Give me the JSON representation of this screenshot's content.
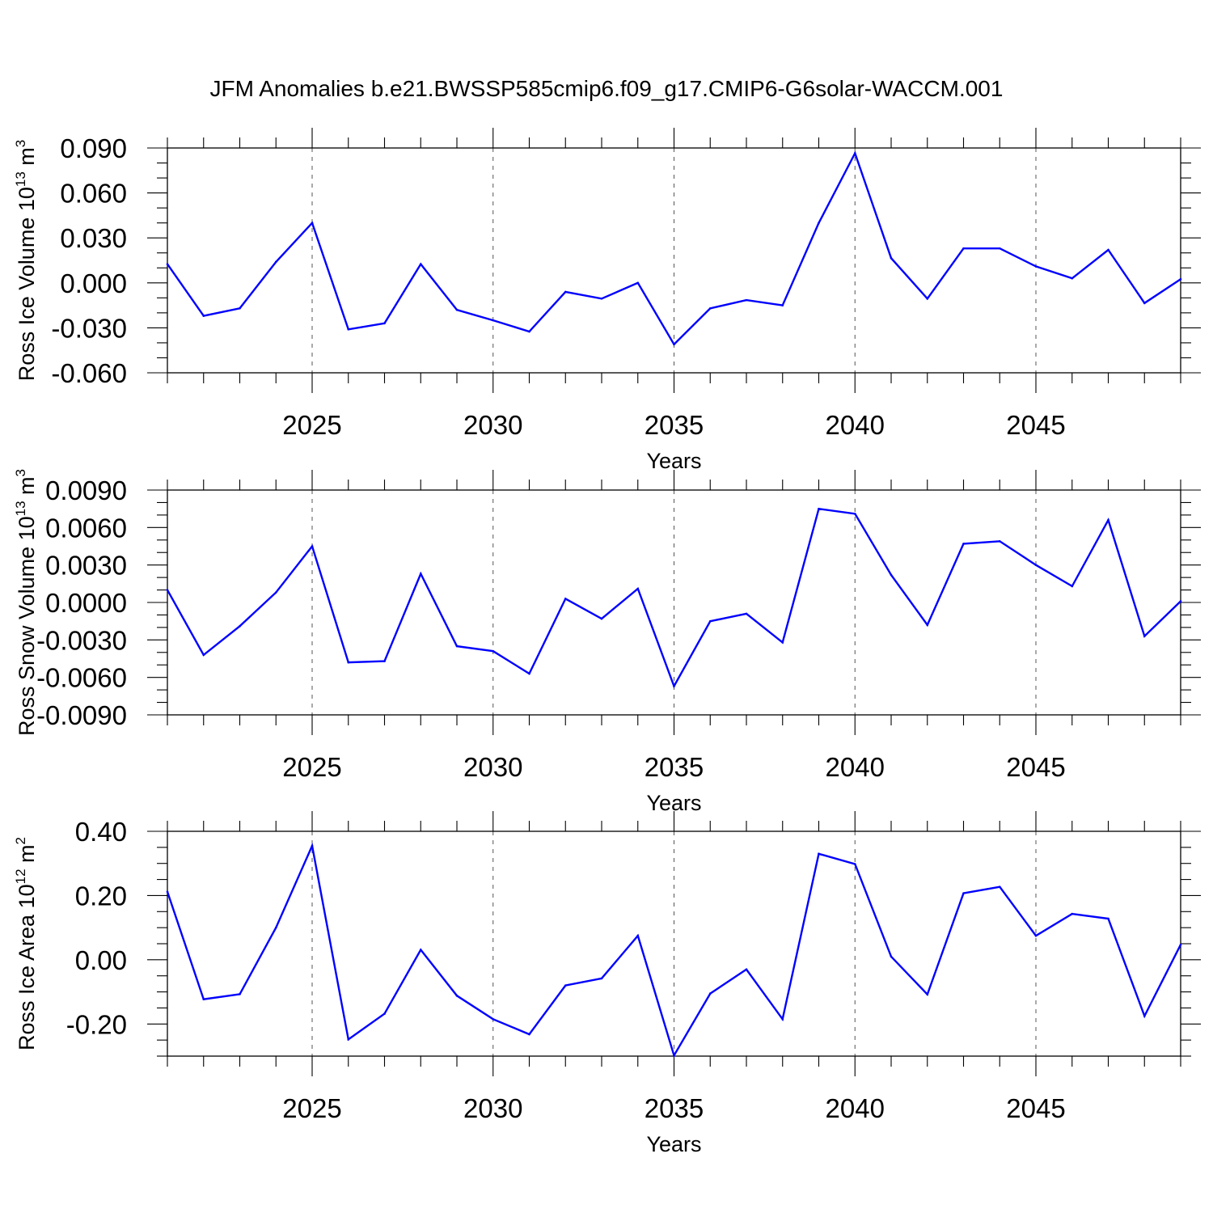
{
  "figure": {
    "title": "JFM Anomalies b.e21.BWSSP585cmip6.f09_g17.CMIP6-G6solar-WACCM.001"
  },
  "colors": {
    "series": "#0000ff",
    "axes": "#000000",
    "gridline": "#555555",
    "background": "#ffffff"
  },
  "chart_data": [
    {
      "type": "line",
      "title": "",
      "xlabel": "Years",
      "ylabel": {
        "text": "Ross Ice Volume 10",
        "exponent": "13",
        "unit": "m",
        "unit_exponent": "3"
      },
      "xlim": [
        2021,
        2049
      ],
      "ylim": [
        -0.06,
        0.09
      ],
      "xticks": [
        "2025",
        "2030",
        "2035",
        "2040",
        "2045"
      ],
      "xtick_values": [
        2025,
        2030,
        2035,
        2040,
        2045
      ],
      "yticks": [
        "-0.060",
        "-0.030",
        "0.000",
        "0.030",
        "0.060",
        "0.090"
      ],
      "ytick_values": [
        -0.06,
        -0.03,
        0.0,
        0.03,
        0.06,
        0.09
      ],
      "y_minor_step": 0.01,
      "grid": "vertical dashed at major x ticks",
      "x": [
        2021,
        2022,
        2023,
        2024,
        2025,
        2026,
        2027,
        2028,
        2029,
        2030,
        2031,
        2032,
        2033,
        2034,
        2035,
        2036,
        2037,
        2038,
        2039,
        2040,
        2041,
        2042,
        2043,
        2044,
        2045,
        2046,
        2047,
        2048,
        2049
      ],
      "series": [
        {
          "name": "Ross Ice Volume",
          "values": [
            0.0125,
            -0.022,
            -0.017,
            0.014,
            0.04,
            -0.031,
            -0.027,
            0.0125,
            -0.018,
            -0.025,
            -0.0325,
            -0.006,
            -0.0105,
            0.0,
            -0.041,
            -0.017,
            -0.0115,
            -0.015,
            0.04,
            0.0865,
            0.0165,
            -0.0105,
            0.023,
            0.023,
            0.011,
            0.003,
            0.022,
            -0.0135,
            0.0025
          ]
        }
      ]
    },
    {
      "type": "line",
      "title": "",
      "xlabel": "Years",
      "ylabel": {
        "text": "Ross Snow Volume 10",
        "exponent": "13",
        "unit": "m",
        "unit_exponent": "3"
      },
      "xlim": [
        2021,
        2049
      ],
      "ylim": [
        -0.009,
        0.009
      ],
      "xticks": [
        "2025",
        "2030",
        "2035",
        "2040",
        "2045"
      ],
      "xtick_values": [
        2025,
        2030,
        2035,
        2040,
        2045
      ],
      "yticks": [
        "-0.0090",
        "-0.0060",
        "-0.0030",
        "0.0000",
        "0.0030",
        "0.0060",
        "0.0090"
      ],
      "ytick_values": [
        -0.009,
        -0.006,
        -0.003,
        0.0,
        0.003,
        0.006,
        0.009
      ],
      "y_minor_step": 0.001,
      "grid": "vertical dashed at major x ticks",
      "x": [
        2021,
        2022,
        2023,
        2024,
        2025,
        2026,
        2027,
        2028,
        2029,
        2030,
        2031,
        2032,
        2033,
        2034,
        2035,
        2036,
        2037,
        2038,
        2039,
        2040,
        2041,
        2042,
        2043,
        2044,
        2045,
        2046,
        2047,
        2048,
        2049
      ],
      "series": [
        {
          "name": "Ross Snow Volume",
          "values": [
            0.001,
            -0.0042,
            -0.0019,
            0.0008,
            0.0045,
            -0.0048,
            -0.0047,
            0.0023,
            -0.0035,
            -0.0039,
            -0.0057,
            0.0003,
            -0.0013,
            0.0011,
            -0.0067,
            -0.0015,
            -0.0009,
            -0.0032,
            0.0075,
            0.0071,
            0.0022,
            -0.0018,
            0.0047,
            0.0049,
            0.003,
            0.0013,
            0.0066,
            -0.0027,
            0.0001
          ]
        }
      ]
    },
    {
      "type": "line",
      "title": "",
      "xlabel": "Years",
      "ylabel": {
        "text": "Ross Ice Area 10",
        "exponent": "12",
        "unit": "m",
        "unit_exponent": "2"
      },
      "xlim": [
        2021,
        2049
      ],
      "ylim": [
        -0.3,
        0.4
      ],
      "xticks": [
        "2025",
        "2030",
        "2035",
        "2040",
        "2045"
      ],
      "xtick_values": [
        2025,
        2030,
        2035,
        2040,
        2045
      ],
      "yticks": [
        "-0.20",
        "0.00",
        "0.20",
        "0.40"
      ],
      "ytick_values": [
        -0.2,
        0.0,
        0.2,
        0.4
      ],
      "y_minor_step": 0.05,
      "grid": "vertical dashed at major x ticks",
      "x": [
        2021,
        2022,
        2023,
        2024,
        2025,
        2026,
        2027,
        2028,
        2029,
        2030,
        2031,
        2032,
        2033,
        2034,
        2035,
        2036,
        2037,
        2038,
        2039,
        2040,
        2041,
        2042,
        2043,
        2044,
        2045,
        2046,
        2047,
        2048,
        2049
      ],
      "series": [
        {
          "name": "Ross Ice Area",
          "values": [
            0.212,
            -0.123,
            -0.107,
            0.1,
            0.355,
            -0.248,
            -0.168,
            0.031,
            -0.112,
            -0.185,
            -0.232,
            -0.08,
            -0.058,
            0.075,
            -0.298,
            -0.105,
            -0.03,
            -0.185,
            0.33,
            0.298,
            0.01,
            -0.108,
            0.207,
            0.227,
            0.075,
            0.143,
            0.128,
            -0.175,
            0.047
          ]
        }
      ]
    }
  ]
}
